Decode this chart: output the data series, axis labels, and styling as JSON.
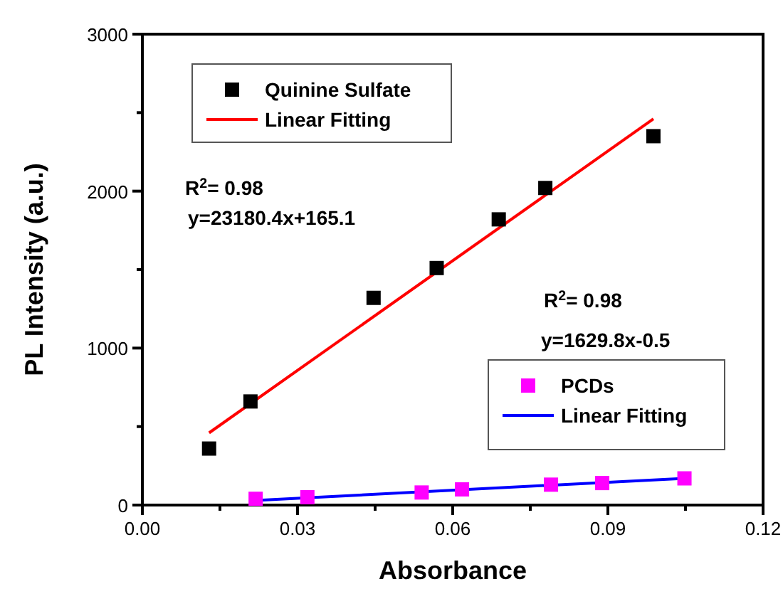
{
  "chart_data": {
    "type": "scatter",
    "xlabel": "Absorbance",
    "ylabel": "PL Intensity (a.u.)",
    "xlim": [
      0,
      0.12
    ],
    "ylim": [
      0,
      3000
    ],
    "xticks": [
      {
        "value": 0,
        "label": "0.00"
      },
      {
        "value": 0.015,
        "label": null
      },
      {
        "value": 0.03,
        "label": "0.03"
      },
      {
        "value": 0.045,
        "label": null
      },
      {
        "value": 0.06,
        "label": "0.06"
      },
      {
        "value": 0.075,
        "label": null
      },
      {
        "value": 0.09,
        "label": "0.09"
      },
      {
        "value": 0.105,
        "label": null
      },
      {
        "value": 0.12,
        "label": "0.12"
      }
    ],
    "yticks": [
      0,
      {
        "value": 500,
        "label": null
      },
      1000,
      {
        "value": 1500,
        "label": null
      },
      2000,
      {
        "value": 2500,
        "label": null
      },
      3000
    ],
    "grid": false,
    "legend": "top left",
    "marker": "square",
    "series": [
      {
        "name": "Quinine Sulfate",
        "color": "#000000",
        "x": [
          0.0129,
          0.0209,
          0.0447,
          0.0569,
          0.0689,
          0.0779,
          0.0988
        ],
        "values": [
          360,
          660,
          1320,
          1510,
          1820,
          2020,
          2350
        ]
      },
      {
        "name": "Linear Fitting",
        "type": "line",
        "marker": "none",
        "color": "#ff0000",
        "x": [
          0.0129,
          0.0988
        ],
        "values": [
          460,
          2460
        ]
      },
      {
        "name": "PCDs",
        "color": "#ff00ff",
        "x": [
          0.0219,
          0.0319,
          0.054,
          0.0618,
          0.079,
          0.0889,
          0.1048
        ],
        "values": [
          40,
          50,
          80,
          100,
          130,
          140,
          170
        ]
      },
      {
        "name": "Linear Fitting",
        "type": "line",
        "marker": "none",
        "color": "#0000ff",
        "x": [
          0.0219,
          0.1048
        ],
        "values": [
          30,
          170
        ]
      }
    ],
    "annotations": [
      "R$^{2}$= 0.98",
      "y=23180.4x+165.1",
      "R$^{2}$= 0.98",
      "y=1629.8x-0.5"
    ]
  }
}
